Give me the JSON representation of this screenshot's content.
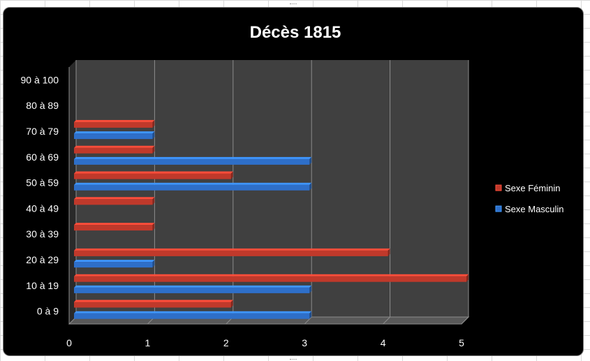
{
  "chart_data": {
    "type": "bar",
    "orientation": "horizontal",
    "title": "Décès 1815",
    "categories": [
      "0 à 9",
      "10 à 19",
      "20 à 29",
      "30 à 39",
      "40 à 49",
      "50 à 59",
      "60 à 69",
      "70 à 79",
      "80 à 89",
      "90 à 100"
    ],
    "series": [
      {
        "name": "Sexe Féminin",
        "color": "#c0392b",
        "values": [
          2,
          5,
          4,
          1,
          1,
          2,
          1,
          1,
          0,
          0
        ]
      },
      {
        "name": "Sexe Masculin",
        "color": "#2e6fc9",
        "values": [
          3,
          3,
          1,
          0,
          0,
          3,
          3,
          1,
          0,
          0
        ]
      }
    ],
    "xlim": [
      0,
      5
    ],
    "x_ticks": [
      "0",
      "1",
      "2",
      "3",
      "4",
      "5"
    ],
    "grid": true,
    "legend_position": "right",
    "background": "#000000",
    "plot_area_color": "#404040"
  }
}
